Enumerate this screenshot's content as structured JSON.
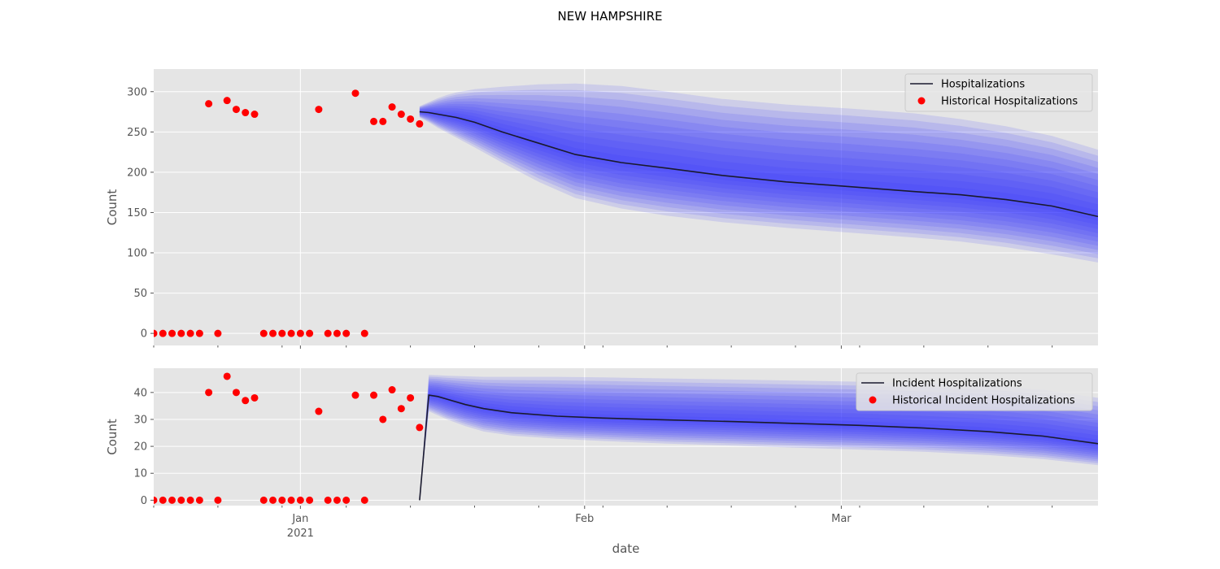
{
  "title": "NEW HAMPSHIRE",
  "colors": {
    "panel_bg": "#e5e5e5",
    "grid": "#ffffff",
    "band": "#3232ff",
    "median_line": "#1a1a2e",
    "historical": "#ff0000",
    "tick_text": "#555555"
  },
  "chart_data": [
    {
      "type": "line",
      "panel": "top",
      "ylabel": "Count",
      "xlabel": "",
      "xlim": [
        "2020-12-07",
        "2021-03-20"
      ],
      "ylim": [
        -15,
        328
      ],
      "yticks": [
        0,
        50,
        100,
        150,
        200,
        250,
        300
      ],
      "grid": true,
      "legend_position": "top-right",
      "series": [
        {
          "name": "Hospitalizations",
          "kind": "line",
          "x": [
            "2021-01-05",
            "2021-01-06",
            "2021-01-07",
            "2021-01-08",
            "2021-01-09",
            "2021-01-11",
            "2021-01-14",
            "2021-01-18",
            "2021-01-22",
            "2021-01-27",
            "2021-02-01",
            "2021-02-07",
            "2021-02-14",
            "2021-02-21",
            "2021-02-28",
            "2021-03-05",
            "2021-03-10",
            "2021-03-15",
            "2021-03-20"
          ],
          "values": [
            275,
            274,
            272,
            270,
            268,
            262,
            250,
            236,
            222,
            212,
            205,
            196,
            188,
            182,
            176,
            172,
            166,
            158,
            145
          ],
          "upper_band": [
            282,
            287,
            292,
            296,
            299,
            303,
            306,
            309,
            310,
            307,
            300,
            291,
            284,
            279,
            273,
            266,
            257,
            245,
            228
          ],
          "lower_band": [
            268,
            262,
            255,
            249,
            243,
            231,
            212,
            188,
            168,
            155,
            146,
            138,
            131,
            125,
            119,
            114,
            107,
            98,
            88
          ]
        },
        {
          "name": "Historical Hospitalizations",
          "kind": "scatter",
          "x": [
            "2020-12-07",
            "2020-12-08",
            "2020-12-09",
            "2020-12-10",
            "2020-12-11",
            "2020-12-12",
            "2020-12-13",
            "2020-12-14",
            "2020-12-15",
            "2020-12-16",
            "2020-12-17",
            "2020-12-18",
            "2020-12-19",
            "2020-12-20",
            "2020-12-21",
            "2020-12-22",
            "2020-12-23",
            "2020-12-24",
            "2020-12-25",
            "2020-12-26",
            "2020-12-27",
            "2020-12-28",
            "2020-12-29",
            "2020-12-30",
            "2020-12-31",
            "2021-01-01",
            "2021-01-02",
            "2021-01-03",
            "2021-01-04",
            "2021-01-05"
          ],
          "values": [
            0,
            0,
            0,
            0,
            0,
            0,
            285,
            0,
            289,
            278,
            274,
            272,
            0,
            0,
            0,
            0,
            0,
            0,
            278,
            0,
            0,
            0,
            298,
            0,
            263,
            263,
            281,
            272,
            266,
            260
          ]
        }
      ]
    },
    {
      "type": "line",
      "panel": "bottom",
      "ylabel": "Count",
      "xlabel": "date",
      "xlim": [
        "2020-12-07",
        "2021-03-20"
      ],
      "ylim": [
        -2,
        49
      ],
      "yticks": [
        0,
        10,
        20,
        30,
        40
      ],
      "xticks": [
        {
          "date": "2020-12-23",
          "label": "Jan",
          "label2": "2021"
        },
        {
          "date": "2021-01-23",
          "label": "Feb",
          "label2": ""
        },
        {
          "date": "2021-02-20",
          "label": "Mar",
          "label2": ""
        }
      ],
      "grid": true,
      "legend_position": "top-right",
      "series": [
        {
          "name": "Incident Hospitalizations",
          "kind": "line",
          "x": [
            "2021-01-05",
            "2021-01-06",
            "2021-01-07",
            "2021-01-08",
            "2021-01-10",
            "2021-01-12",
            "2021-01-15",
            "2021-01-20",
            "2021-01-25",
            "2021-02-01",
            "2021-02-08",
            "2021-02-15",
            "2021-02-22",
            "2021-03-01",
            "2021-03-08",
            "2021-03-14",
            "2021-03-20"
          ],
          "values": [
            0,
            39,
            38.5,
            37.5,
            35.5,
            34,
            32.5,
            31.2,
            30.5,
            29.8,
            29.2,
            28.5,
            27.8,
            26.8,
            25.5,
            23.8,
            21
          ],
          "upper_band": [
            0,
            46.5,
            46.4,
            46.2,
            46,
            45.8,
            45.8,
            45.8,
            45.6,
            45.2,
            44.8,
            44.4,
            44,
            43.4,
            42.6,
            41,
            38
          ],
          "lower_band": [
            0,
            33,
            31.5,
            30,
            27.5,
            25.5,
            24,
            22.8,
            22,
            21,
            20.3,
            19.5,
            18.8,
            18,
            16.8,
            15.3,
            13
          ]
        },
        {
          "name": "Historical Incident Hospitalizations",
          "kind": "scatter",
          "x": [
            "2020-12-07",
            "2020-12-08",
            "2020-12-09",
            "2020-12-10",
            "2020-12-11",
            "2020-12-12",
            "2020-12-13",
            "2020-12-14",
            "2020-12-15",
            "2020-12-16",
            "2020-12-17",
            "2020-12-18",
            "2020-12-19",
            "2020-12-20",
            "2020-12-21",
            "2020-12-22",
            "2020-12-23",
            "2020-12-24",
            "2020-12-25",
            "2020-12-26",
            "2020-12-27",
            "2020-12-28",
            "2020-12-29",
            "2020-12-30",
            "2020-12-31",
            "2021-01-01",
            "2021-01-02",
            "2021-01-03",
            "2021-01-04",
            "2021-01-05"
          ],
          "values": [
            0,
            0,
            0,
            0,
            0,
            0,
            40,
            0,
            46,
            40,
            37,
            38,
            0,
            0,
            0,
            0,
            0,
            0,
            33,
            0,
            0,
            0,
            39,
            0,
            39,
            30,
            41,
            34,
            38,
            27
          ]
        }
      ]
    }
  ]
}
